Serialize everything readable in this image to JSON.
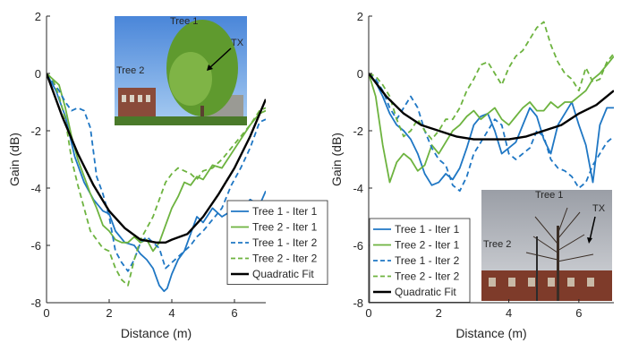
{
  "chart_data": [
    {
      "type": "line",
      "xlabel": "Distance (m)",
      "ylabel": "Gain (dB)",
      "xlim": [
        0,
        7
      ],
      "ylim": [
        -8,
        2
      ],
      "xticks": [
        0,
        2,
        4,
        6
      ],
      "yticks": [
        2,
        0,
        -2,
        -4,
        -6,
        -8
      ],
      "grid": false,
      "legend_position": "bottom-right",
      "inset_photo": {
        "position": "top-center",
        "labels": [
          "Tree 1",
          "Tree 2",
          "TX"
        ]
      },
      "series": [
        {
          "name": "Tree 1 - Iter 1",
          "color": "#1f77c4",
          "style": "solid",
          "x": [
            0,
            0.3,
            0.6,
            0.9,
            1.2,
            1.5,
            1.8,
            2.0,
            2.2,
            2.5,
            2.8,
            3.0,
            3.2,
            3.4,
            3.6,
            3.75,
            3.85,
            4.0,
            4.2,
            4.4,
            4.6,
            4.8,
            5.0,
            5.3,
            5.6,
            5.9,
            6.2,
            6.5,
            6.8,
            7.0
          ],
          "y": [
            0,
            -0.6,
            -1.5,
            -2.9,
            -3.8,
            -4.4,
            -4.8,
            -4.9,
            -5.5,
            -5.9,
            -6.0,
            -6.3,
            -6.5,
            -6.8,
            -7.4,
            -7.6,
            -7.5,
            -7.0,
            -6.5,
            -6.2,
            -5.6,
            -5.0,
            -5.2,
            -4.7,
            -5.0,
            -4.8,
            -4.8,
            -4.4,
            -4.6,
            -4.1
          ]
        },
        {
          "name": "Tree 2 - Iter 1",
          "color": "#6db33f",
          "style": "solid",
          "x": [
            0,
            0.2,
            0.4,
            0.6,
            0.8,
            1.0,
            1.2,
            1.4,
            1.6,
            1.8,
            2.0,
            2.2,
            2.4,
            2.6,
            2.8,
            3.0,
            3.2,
            3.4,
            3.6,
            3.8,
            4.0,
            4.2,
            4.4,
            4.6,
            4.8,
            5.0,
            5.3,
            5.6,
            5.9,
            6.2,
            6.5,
            6.8,
            7.0
          ],
          "y": [
            0,
            -0.2,
            -0.4,
            -1.2,
            -2.2,
            -3.0,
            -3.6,
            -4.2,
            -4.7,
            -5.3,
            -5.5,
            -5.8,
            -5.9,
            -5.9,
            -5.7,
            -5.9,
            -5.8,
            -6.2,
            -5.9,
            -5.3,
            -4.7,
            -4.3,
            -3.8,
            -3.9,
            -3.6,
            -3.7,
            -3.2,
            -3.3,
            -2.8,
            -2.3,
            -1.8,
            -1.4,
            -1.3
          ]
        },
        {
          "name": "Tree 1 - Iter 2",
          "color": "#1f77c4",
          "style": "dashed",
          "x": [
            0,
            0.2,
            0.4,
            0.6,
            0.8,
            1.0,
            1.2,
            1.4,
            1.6,
            1.8,
            2.0,
            2.2,
            2.4,
            2.6,
            2.8,
            3.0,
            3.2,
            3.4,
            3.6,
            3.8,
            4.0,
            4.2,
            4.4,
            4.6,
            4.8,
            5.0,
            5.3,
            5.6,
            5.9,
            6.2,
            6.5,
            6.8,
            7.0
          ],
          "y": [
            0,
            -0.3,
            -0.6,
            -1.0,
            -1.3,
            -1.2,
            -1.3,
            -1.9,
            -3.6,
            -4.2,
            -5.0,
            -6.2,
            -6.6,
            -6.9,
            -6.5,
            -5.9,
            -5.7,
            -5.9,
            -6.1,
            -6.8,
            -6.6,
            -6.4,
            -6.2,
            -6.0,
            -5.7,
            -5.5,
            -5.1,
            -4.7,
            -3.9,
            -3.3,
            -2.6,
            -1.7,
            -1.6
          ]
        },
        {
          "name": "Tree 2 - Iter 2",
          "color": "#6db33f",
          "style": "dashed",
          "x": [
            0,
            0.2,
            0.4,
            0.6,
            0.8,
            1.0,
            1.2,
            1.4,
            1.6,
            1.8,
            2.0,
            2.2,
            2.4,
            2.6,
            2.8,
            3.0,
            3.2,
            3.4,
            3.6,
            3.8,
            4.0,
            4.2,
            4.4,
            4.6,
            4.8,
            5.0,
            5.3,
            5.6,
            5.9,
            6.2,
            6.5,
            6.8,
            7.0
          ],
          "y": [
            0,
            -0.2,
            -0.8,
            -1.6,
            -3.0,
            -3.9,
            -4.7,
            -5.5,
            -5.8,
            -6.1,
            -6.2,
            -6.8,
            -7.2,
            -7.4,
            -6.5,
            -5.8,
            -5.4,
            -5.0,
            -4.4,
            -3.8,
            -3.5,
            -3.3,
            -3.4,
            -3.5,
            -3.7,
            -3.4,
            -3.3,
            -3.0,
            -2.6,
            -2.2,
            -1.8,
            -1.3,
            -1.2
          ]
        },
        {
          "name": "Quadratic Fit",
          "color": "#000000",
          "style": "solid",
          "x": [
            0,
            0.5,
            1.0,
            1.5,
            2.0,
            2.5,
            3.0,
            3.5,
            3.8,
            4.0,
            4.5,
            5.0,
            5.5,
            6.0,
            6.5,
            7.0
          ],
          "y": [
            0,
            -1.5,
            -2.8,
            -3.9,
            -4.8,
            -5.4,
            -5.8,
            -5.9,
            -5.9,
            -5.8,
            -5.6,
            -5.0,
            -4.2,
            -3.3,
            -2.2,
            -0.9
          ]
        }
      ]
    },
    {
      "type": "line",
      "xlabel": "Distance (m)",
      "ylabel": "Gain (dB)",
      "xlim": [
        0,
        7
      ],
      "ylim": [
        -8,
        2
      ],
      "xticks": [
        0,
        2,
        4,
        6
      ],
      "yticks": [
        2,
        0,
        -2,
        -4,
        -6,
        -8
      ],
      "grid": false,
      "legend_position": "bottom-left",
      "inset_photo": {
        "position": "bottom-right",
        "labels": [
          "Tree 1",
          "Tree 2",
          "TX"
        ]
      },
      "series": [
        {
          "name": "Tree 1 - Iter 1",
          "color": "#1f77c4",
          "style": "solid",
          "x": [
            0,
            0.2,
            0.4,
            0.6,
            0.8,
            1.0,
            1.2,
            1.4,
            1.6,
            1.8,
            2.0,
            2.2,
            2.4,
            2.6,
            2.8,
            3.0,
            3.2,
            3.4,
            3.6,
            3.8,
            4.0,
            4.2,
            4.4,
            4.6,
            4.8,
            5.0,
            5.2,
            5.4,
            5.6,
            5.8,
            6.0,
            6.2,
            6.4,
            6.6,
            6.8,
            7.0
          ],
          "y": [
            0,
            -0.3,
            -0.8,
            -1.4,
            -1.8,
            -2.0,
            -2.3,
            -2.8,
            -3.5,
            -3.9,
            -3.8,
            -3.5,
            -3.7,
            -3.3,
            -2.6,
            -1.8,
            -1.5,
            -1.4,
            -2.0,
            -2.8,
            -2.6,
            -2.4,
            -1.8,
            -1.2,
            -1.5,
            -2.3,
            -2.8,
            -1.8,
            -1.4,
            -1.0,
            -1.8,
            -2.5,
            -3.8,
            -1.8,
            -1.2,
            -1.2
          ]
        },
        {
          "name": "Tree 2 - Iter 1",
          "color": "#6db33f",
          "style": "solid",
          "x": [
            0,
            0.2,
            0.4,
            0.6,
            0.8,
            1.0,
            1.2,
            1.4,
            1.6,
            1.8,
            2.0,
            2.2,
            2.4,
            2.6,
            2.8,
            3.0,
            3.2,
            3.4,
            3.6,
            3.8,
            4.0,
            4.2,
            4.4,
            4.6,
            4.8,
            5.0,
            5.2,
            5.4,
            5.6,
            5.8,
            6.0,
            6.2,
            6.4,
            6.6,
            6.8,
            7.0
          ],
          "y": [
            0,
            -0.8,
            -2.5,
            -3.8,
            -3.1,
            -2.8,
            -3.0,
            -3.4,
            -3.2,
            -2.5,
            -2.8,
            -2.4,
            -2.0,
            -1.8,
            -1.5,
            -1.3,
            -1.6,
            -1.4,
            -1.2,
            -1.6,
            -1.8,
            -1.5,
            -1.2,
            -1.0,
            -1.3,
            -1.3,
            -1.0,
            -1.2,
            -1.0,
            -1.0,
            -0.8,
            -0.6,
            -0.2,
            0.0,
            0.3,
            0.6
          ]
        },
        {
          "name": "Tree 1 - Iter 2",
          "color": "#1f77c4",
          "style": "dashed",
          "x": [
            0,
            0.2,
            0.4,
            0.6,
            0.8,
            1.0,
            1.2,
            1.4,
            1.6,
            1.8,
            2.0,
            2.2,
            2.4,
            2.6,
            2.8,
            3.0,
            3.2,
            3.4,
            3.6,
            3.8,
            4.0,
            4.2,
            4.4,
            4.6,
            4.8,
            5.0,
            5.2,
            5.4,
            5.6,
            5.8,
            6.0,
            6.2,
            6.4,
            6.6,
            6.8,
            7.0
          ],
          "y": [
            0,
            -0.2,
            -0.6,
            -1.2,
            -1.6,
            -1.2,
            -0.8,
            -1.2,
            -2.0,
            -2.6,
            -3.0,
            -3.2,
            -3.9,
            -4.1,
            -3.6,
            -2.8,
            -2.4,
            -2.0,
            -1.6,
            -1.8,
            -2.8,
            -3.0,
            -2.8,
            -2.6,
            -2.0,
            -2.2,
            -3.0,
            -3.3,
            -3.4,
            -3.6,
            -4.0,
            -3.8,
            -3.2,
            -2.8,
            -2.4,
            -2.2
          ]
        },
        {
          "name": "Tree 2 - Iter 2",
          "color": "#6db33f",
          "style": "dashed",
          "x": [
            0,
            0.2,
            0.4,
            0.6,
            0.8,
            1.0,
            1.2,
            1.4,
            1.6,
            1.8,
            2.0,
            2.2,
            2.4,
            2.6,
            2.8,
            3.0,
            3.2,
            3.4,
            3.6,
            3.8,
            4.0,
            4.2,
            4.4,
            4.6,
            4.8,
            5.0,
            5.2,
            5.4,
            5.6,
            5.8,
            6.0,
            6.2,
            6.4,
            6.6,
            6.8,
            7.0
          ],
          "y": [
            0,
            -0.1,
            -0.4,
            -0.8,
            -1.6,
            -2.2,
            -2.0,
            -1.6,
            -2.0,
            -2.3,
            -2.0,
            -1.6,
            -1.6,
            -1.2,
            -0.6,
            -0.2,
            0.3,
            0.4,
            0.0,
            -0.4,
            0.2,
            0.6,
            0.8,
            1.2,
            1.6,
            1.8,
            1.0,
            0.4,
            0.0,
            -0.2,
            -0.6,
            0.2,
            -0.3,
            -0.2,
            0.4,
            0.7
          ]
        },
        {
          "name": "Quadratic Fit",
          "color": "#000000",
          "style": "solid",
          "x": [
            0,
            0.5,
            1.0,
            1.5,
            2.0,
            2.5,
            3.0,
            3.5,
            3.7,
            4.0,
            4.5,
            5.0,
            5.5,
            6.0,
            6.5,
            7.0
          ],
          "y": [
            0,
            -0.8,
            -1.4,
            -1.8,
            -2.0,
            -2.2,
            -2.3,
            -2.3,
            -2.3,
            -2.3,
            -2.2,
            -2.0,
            -1.8,
            -1.4,
            -1.1,
            -0.6
          ]
        }
      ]
    }
  ]
}
